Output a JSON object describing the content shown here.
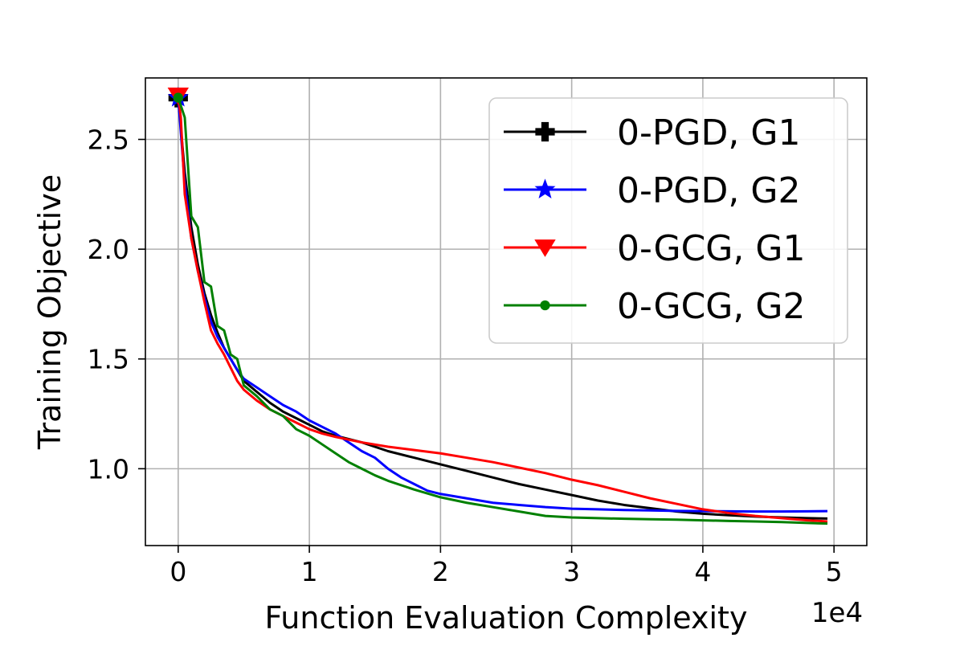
{
  "chart_data": {
    "type": "line",
    "title": "",
    "xlabel": "Function Evaluation Complexity",
    "ylabel": "Training Objective",
    "x_offset_label": "1e4",
    "xlim": [
      -0.25,
      5.25
    ],
    "ylim": [
      0.65,
      2.78
    ],
    "x_ticks": [
      0,
      1,
      2,
      3,
      4,
      5
    ],
    "x_tick_labels": [
      "0",
      "1",
      "2",
      "3",
      "4",
      "5"
    ],
    "y_ticks": [
      1.0,
      1.5,
      2.0,
      2.5
    ],
    "y_tick_labels": [
      "1.0",
      "1.5",
      "2.0",
      "2.5"
    ],
    "grid": true,
    "legend_position": "upper-right",
    "series": [
      {
        "name": "0-PGD, G1",
        "color": "#000000",
        "marker": "plus",
        "points": [
          [
            0,
            2.69
          ],
          [
            0.05,
            2.35
          ],
          [
            0.1,
            2.1
          ],
          [
            0.15,
            1.93
          ],
          [
            0.2,
            1.8
          ],
          [
            0.25,
            1.7
          ],
          [
            0.3,
            1.62
          ],
          [
            0.35,
            1.55
          ],
          [
            0.4,
            1.5
          ],
          [
            0.45,
            1.45
          ],
          [
            0.5,
            1.4
          ],
          [
            0.6,
            1.35
          ],
          [
            0.7,
            1.3
          ],
          [
            0.8,
            1.26
          ],
          [
            0.9,
            1.23
          ],
          [
            1.0,
            1.2
          ],
          [
            1.1,
            1.17
          ],
          [
            1.2,
            1.15
          ],
          [
            1.4,
            1.12
          ],
          [
            1.6,
            1.08
          ],
          [
            1.8,
            1.05
          ],
          [
            2.0,
            1.02
          ],
          [
            2.2,
            0.99
          ],
          [
            2.4,
            0.96
          ],
          [
            2.6,
            0.93
          ],
          [
            2.8,
            0.905
          ],
          [
            3.0,
            0.88
          ],
          [
            3.2,
            0.855
          ],
          [
            3.4,
            0.835
          ],
          [
            3.6,
            0.82
          ],
          [
            3.8,
            0.805
          ],
          [
            4.0,
            0.795
          ],
          [
            4.2,
            0.788
          ],
          [
            4.4,
            0.782
          ],
          [
            4.6,
            0.778
          ],
          [
            4.8,
            0.775
          ],
          [
            4.95,
            0.773
          ]
        ]
      },
      {
        "name": "0-PGD, G2",
        "color": "#0000ff",
        "marker": "star",
        "points": [
          [
            0,
            2.69
          ],
          [
            0.05,
            2.3
          ],
          [
            0.1,
            2.05
          ],
          [
            0.15,
            1.9
          ],
          [
            0.2,
            1.78
          ],
          [
            0.25,
            1.67
          ],
          [
            0.3,
            1.6
          ],
          [
            0.35,
            1.55
          ],
          [
            0.4,
            1.5
          ],
          [
            0.45,
            1.45
          ],
          [
            0.5,
            1.41
          ],
          [
            0.6,
            1.37
          ],
          [
            0.7,
            1.33
          ],
          [
            0.8,
            1.29
          ],
          [
            0.9,
            1.26
          ],
          [
            1.0,
            1.22
          ],
          [
            1.1,
            1.19
          ],
          [
            1.2,
            1.16
          ],
          [
            1.3,
            1.12
          ],
          [
            1.4,
            1.08
          ],
          [
            1.5,
            1.05
          ],
          [
            1.6,
            1.0
          ],
          [
            1.7,
            0.96
          ],
          [
            1.8,
            0.93
          ],
          [
            1.9,
            0.9
          ],
          [
            2.0,
            0.885
          ],
          [
            2.2,
            0.865
          ],
          [
            2.4,
            0.845
          ],
          [
            2.6,
            0.835
          ],
          [
            2.8,
            0.825
          ],
          [
            3.0,
            0.818
          ],
          [
            3.2,
            0.815
          ],
          [
            3.4,
            0.812
          ],
          [
            3.6,
            0.81
          ],
          [
            3.8,
            0.808
          ],
          [
            4.0,
            0.807
          ],
          [
            4.2,
            0.806
          ],
          [
            4.4,
            0.805
          ],
          [
            4.6,
            0.805
          ],
          [
            4.8,
            0.806
          ],
          [
            4.95,
            0.807
          ]
        ]
      },
      {
        "name": "0-GCG, G1",
        "color": "#ff0000",
        "marker": "triangle-down",
        "points": [
          [
            0,
            2.7
          ],
          [
            0.02,
            2.6
          ],
          [
            0.05,
            2.25
          ],
          [
            0.1,
            2.05
          ],
          [
            0.15,
            1.9
          ],
          [
            0.2,
            1.76
          ],
          [
            0.25,
            1.63
          ],
          [
            0.3,
            1.57
          ],
          [
            0.35,
            1.52
          ],
          [
            0.4,
            1.46
          ],
          [
            0.45,
            1.4
          ],
          [
            0.5,
            1.36
          ],
          [
            0.6,
            1.31
          ],
          [
            0.7,
            1.27
          ],
          [
            0.8,
            1.24
          ],
          [
            0.9,
            1.21
          ],
          [
            1.0,
            1.18
          ],
          [
            1.1,
            1.16
          ],
          [
            1.2,
            1.145
          ],
          [
            1.4,
            1.12
          ],
          [
            1.6,
            1.1
          ],
          [
            1.8,
            1.085
          ],
          [
            2.0,
            1.07
          ],
          [
            2.2,
            1.05
          ],
          [
            2.4,
            1.03
          ],
          [
            2.6,
            1.005
          ],
          [
            2.8,
            0.98
          ],
          [
            3.0,
            0.95
          ],
          [
            3.2,
            0.925
          ],
          [
            3.4,
            0.895
          ],
          [
            3.6,
            0.865
          ],
          [
            3.8,
            0.84
          ],
          [
            4.0,
            0.815
          ],
          [
            4.2,
            0.798
          ],
          [
            4.4,
            0.785
          ],
          [
            4.6,
            0.775
          ],
          [
            4.8,
            0.765
          ],
          [
            4.95,
            0.76
          ]
        ]
      },
      {
        "name": "0-GCG, G2",
        "color": "#008000",
        "marker": "dot",
        "points": [
          [
            0,
            2.69
          ],
          [
            0.05,
            2.6
          ],
          [
            0.1,
            2.15
          ],
          [
            0.15,
            2.1
          ],
          [
            0.2,
            1.85
          ],
          [
            0.25,
            1.83
          ],
          [
            0.3,
            1.65
          ],
          [
            0.35,
            1.63
          ],
          [
            0.4,
            1.52
          ],
          [
            0.45,
            1.5
          ],
          [
            0.5,
            1.38
          ],
          [
            0.6,
            1.33
          ],
          [
            0.7,
            1.27
          ],
          [
            0.8,
            1.24
          ],
          [
            0.9,
            1.18
          ],
          [
            1.0,
            1.15
          ],
          [
            1.1,
            1.11
          ],
          [
            1.2,
            1.07
          ],
          [
            1.3,
            1.03
          ],
          [
            1.4,
            1.0
          ],
          [
            1.5,
            0.97
          ],
          [
            1.6,
            0.945
          ],
          [
            1.8,
            0.905
          ],
          [
            2.0,
            0.87
          ],
          [
            2.2,
            0.845
          ],
          [
            2.4,
            0.825
          ],
          [
            2.6,
            0.805
          ],
          [
            2.8,
            0.785
          ],
          [
            3.0,
            0.778
          ],
          [
            3.2,
            0.775
          ],
          [
            3.4,
            0.772
          ],
          [
            3.6,
            0.77
          ],
          [
            3.8,
            0.768
          ],
          [
            4.0,
            0.765
          ],
          [
            4.2,
            0.762
          ],
          [
            4.4,
            0.76
          ],
          [
            4.6,
            0.757
          ],
          [
            4.8,
            0.753
          ],
          [
            4.95,
            0.75
          ]
        ]
      }
    ]
  }
}
